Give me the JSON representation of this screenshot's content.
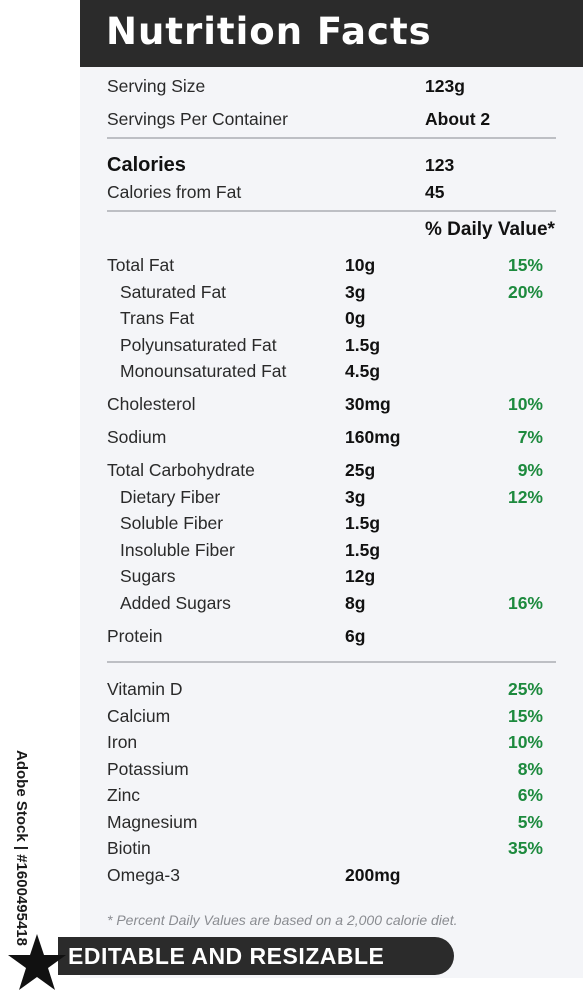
{
  "title": "Nutrition Facts",
  "serving": {
    "size_label": "Serving Size",
    "size_value": "123g",
    "per_container_label": "Servings Per Container",
    "per_container_value": "About 2"
  },
  "calories": {
    "label": "Calories",
    "value": "123",
    "from_fat_label": "Calories from Fat",
    "from_fat_value": "45"
  },
  "daily_value_header": "% Daily Value*",
  "nutrients": [
    {
      "name": "Total Fat",
      "amount": "10g",
      "dv": "15%"
    },
    {
      "name": "Saturated Fat",
      "amount": "3g",
      "dv": "20%"
    },
    {
      "name": "Trans Fat",
      "amount": "0g",
      "dv": ""
    },
    {
      "name": "Polyunsaturated Fat",
      "amount": "1.5g",
      "dv": ""
    },
    {
      "name": "Monounsaturated Fat",
      "amount": "4.5g",
      "dv": ""
    },
    {
      "name": "Cholesterol",
      "amount": "30mg",
      "dv": "10%"
    },
    {
      "name": "Sodium",
      "amount": "160mg",
      "dv": "7%"
    },
    {
      "name": "Total Carbohydrate",
      "amount": "25g",
      "dv": "9%"
    },
    {
      "name": "Dietary Fiber",
      "amount": "3g",
      "dv": "12%"
    },
    {
      "name": "Soluble Fiber",
      "amount": "1.5g",
      "dv": ""
    },
    {
      "name": "Insoluble Fiber",
      "amount": "1.5g",
      "dv": ""
    },
    {
      "name": "Sugars",
      "amount": "12g",
      "dv": ""
    },
    {
      "name": "Added Sugars",
      "amount": "8g",
      "dv": "16%"
    },
    {
      "name": "Protein",
      "amount": "6g",
      "dv": ""
    }
  ],
  "vitamins": [
    {
      "name": "Vitamin D",
      "amount": "",
      "dv": "25%"
    },
    {
      "name": "Calcium",
      "amount": "",
      "dv": "15%"
    },
    {
      "name": "Iron",
      "amount": "",
      "dv": "10%"
    },
    {
      "name": "Potassium",
      "amount": "",
      "dv": "8%"
    },
    {
      "name": "Zinc",
      "amount": "",
      "dv": "6%"
    },
    {
      "name": "Magnesium",
      "amount": "",
      "dv": "5%"
    },
    {
      "name": "Biotin",
      "amount": "",
      "dv": "35%"
    },
    {
      "name": "Omega-3",
      "amount": "200mg",
      "dv": ""
    }
  ],
  "footnote": "* Percent Daily Values are based on a 2,000 calorie diet.",
  "badge_text": "EDITABLE AND RESIZABLE",
  "stock_id": "Adobe Stock | #1600495418",
  "colors": {
    "dv_green": "#1d8a3e",
    "dark": "#2b2b2b",
    "panel": "#f4f5f8"
  }
}
